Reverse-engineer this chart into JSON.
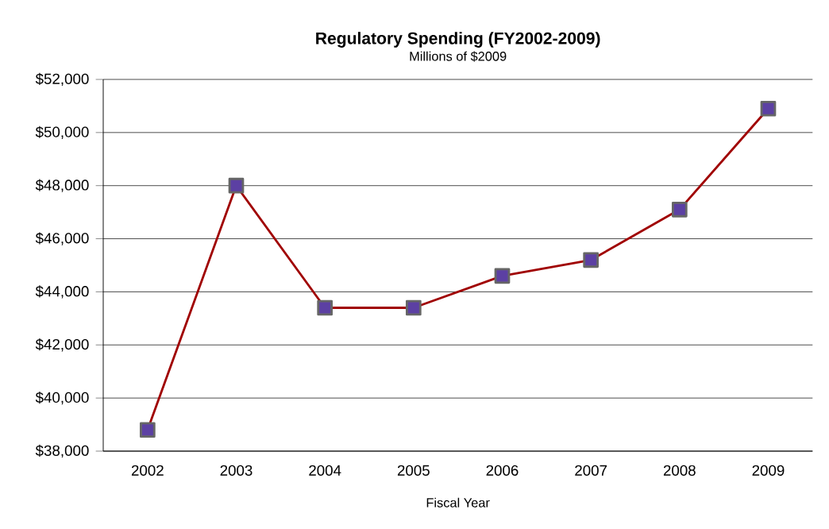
{
  "chart_data": {
    "type": "line",
    "title": "Regulatory Spending (FY2002-2009)",
    "subtitle": "Millions of $2009",
    "xlabel": "Fiscal Year",
    "categories": [
      "2002",
      "2003",
      "2004",
      "2005",
      "2006",
      "2007",
      "2008",
      "2009"
    ],
    "series": [
      {
        "color": "#a00000",
        "values": [
          38800,
          48000,
          43400,
          43400,
          44600,
          45200,
          47100,
          50900
        ]
      }
    ],
    "ylim": [
      38000,
      52000
    ],
    "yticks": [
      {
        "value": 38000,
        "label": "$38,000"
      },
      {
        "value": 40000,
        "label": "$40,000"
      },
      {
        "value": 42000,
        "label": "$42,000"
      },
      {
        "value": 44000,
        "label": "$44,000"
      },
      {
        "value": 46000,
        "label": "$46,000"
      },
      {
        "value": 48000,
        "label": "$48,000"
      },
      {
        "value": 50000,
        "label": "$50,000"
      },
      {
        "value": 52000,
        "label": "$52,000"
      }
    ],
    "grid": "y",
    "marker": "square",
    "line_style": "solid"
  }
}
